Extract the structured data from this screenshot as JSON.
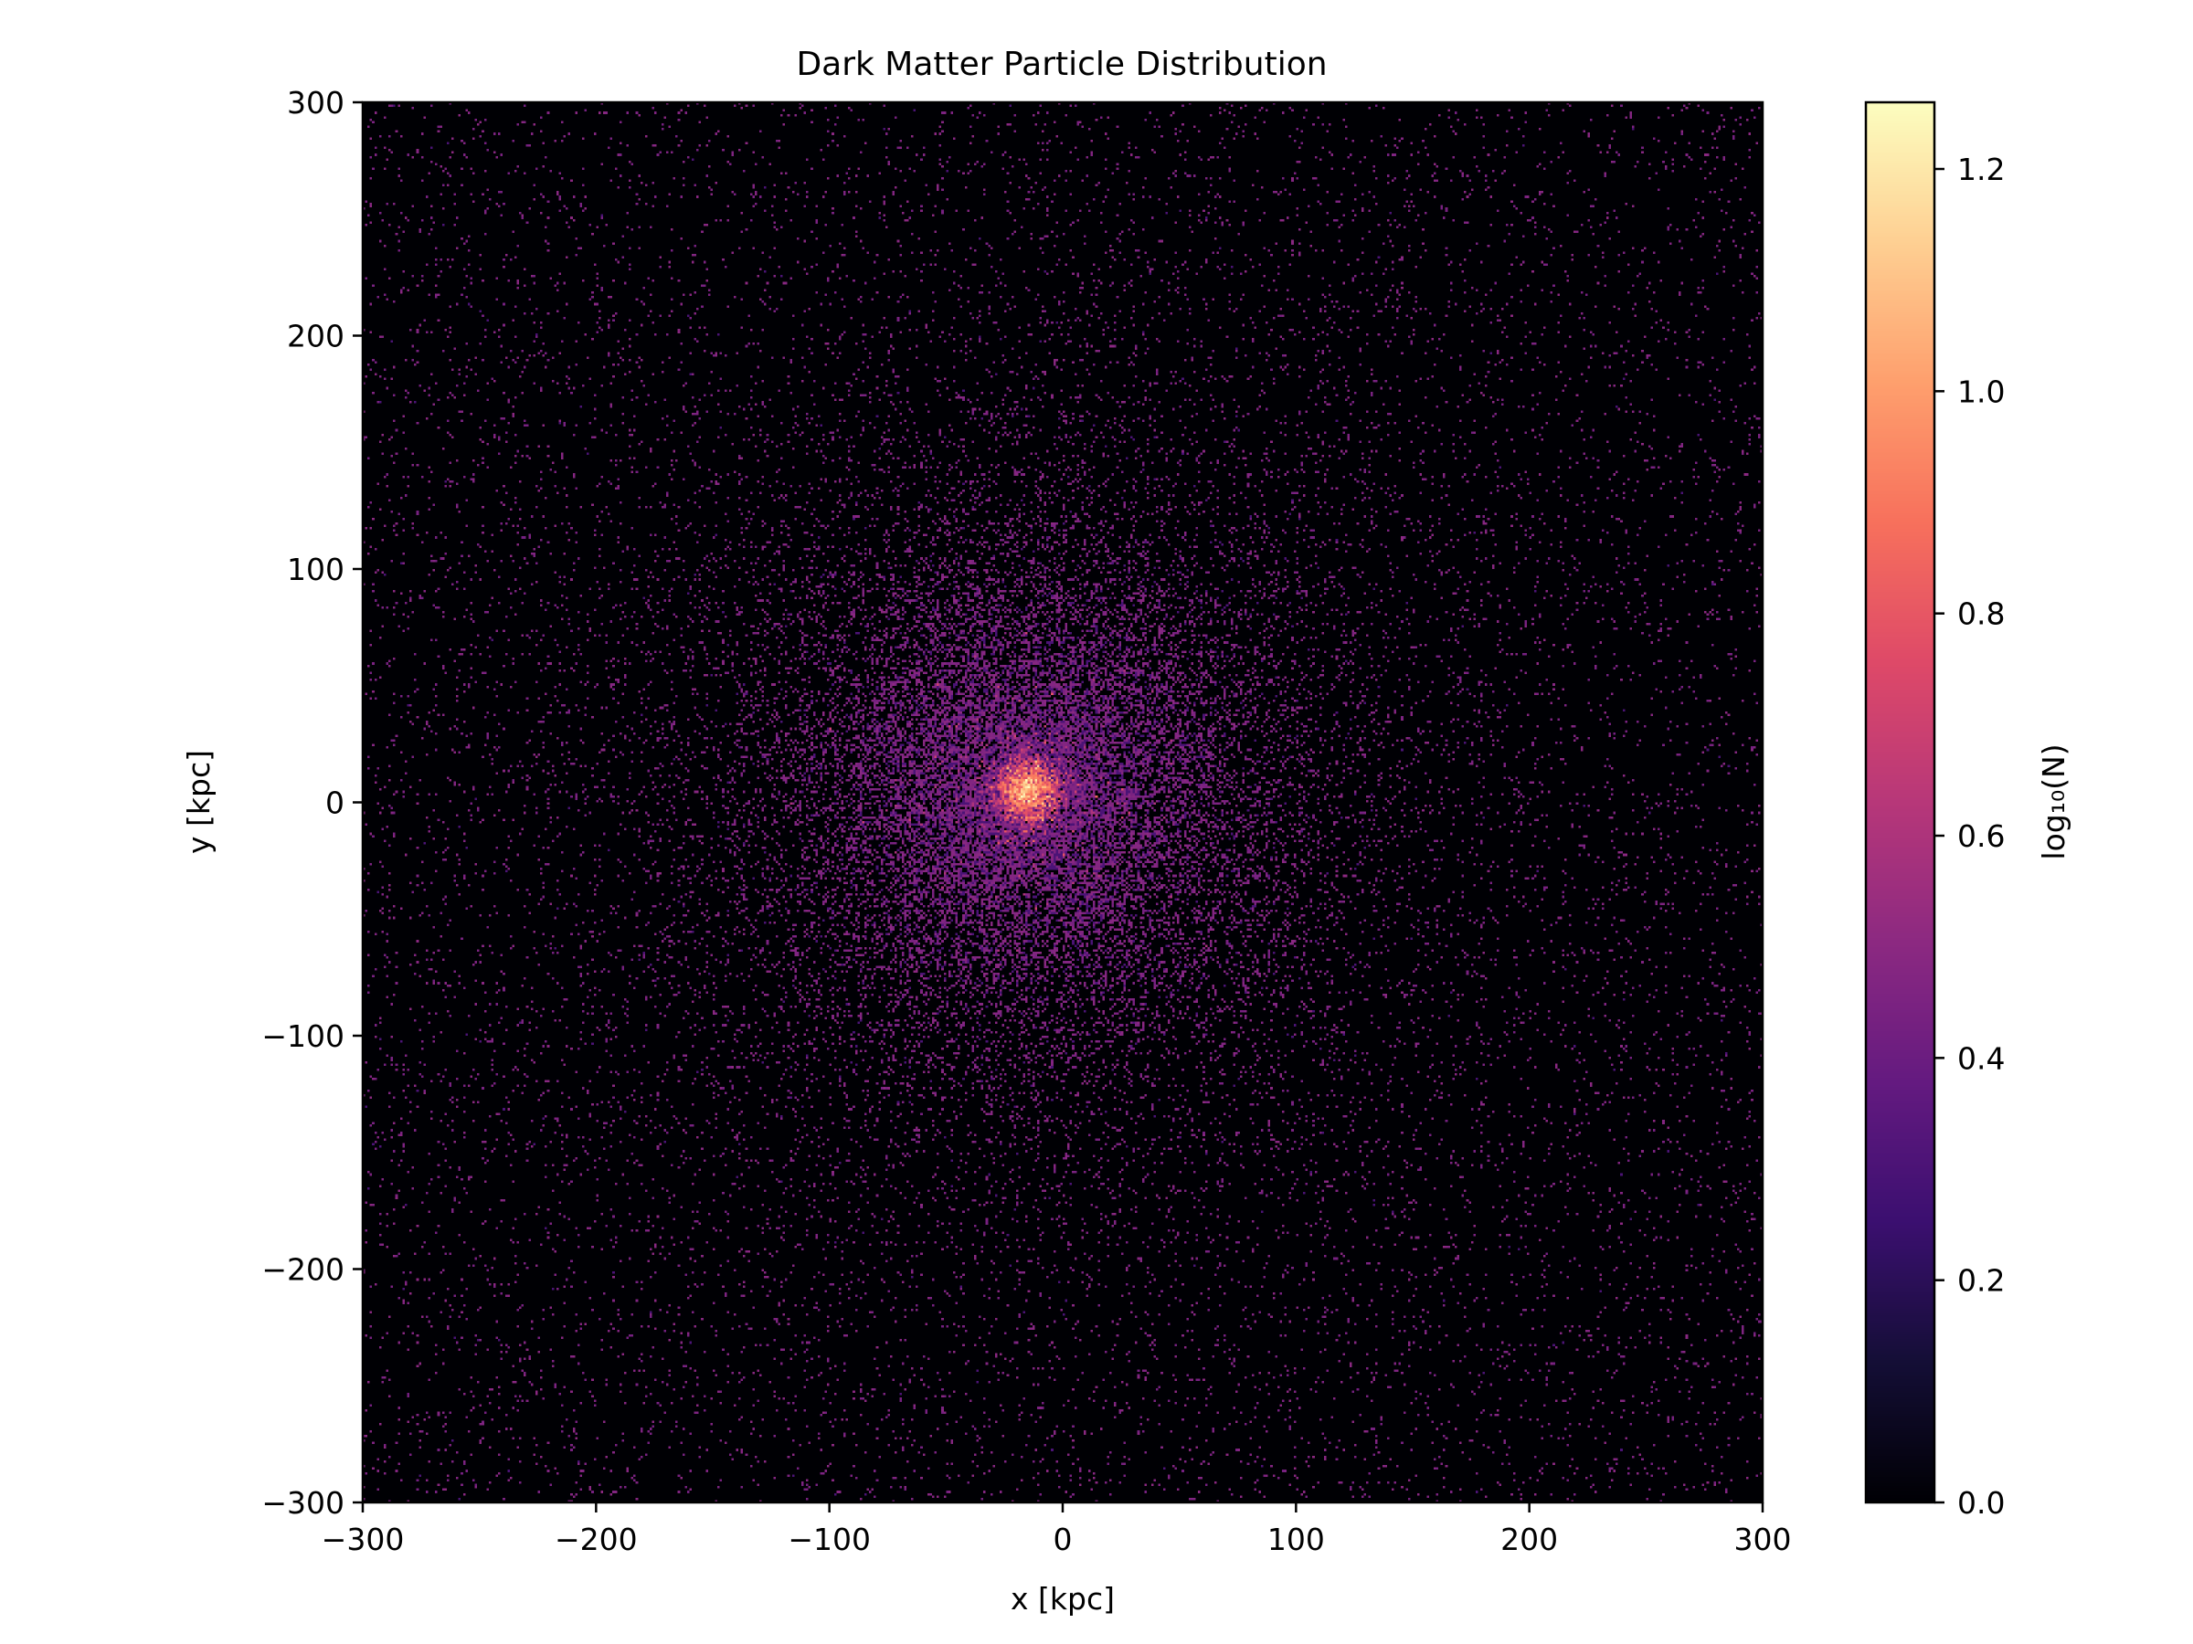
{
  "chart_data": {
    "type": "heatmap",
    "title": "Dark Matter Particle Distribution",
    "xlabel": "x [kpc]",
    "ylabel": "y [kpc]",
    "xlim": [
      -300,
      300
    ],
    "ylim": [
      -300,
      300
    ],
    "x_ticks": [
      -300,
      -200,
      -100,
      0,
      100,
      200,
      300
    ],
    "y_ticks": [
      -300,
      -200,
      -100,
      0,
      100,
      200,
      300
    ],
    "x_tick_labels": [
      "−300",
      "−200",
      "−100",
      "0",
      "100",
      "200",
      "300"
    ],
    "y_tick_labels": [
      "−300",
      "−200",
      "−100",
      "0",
      "100",
      "200",
      "300"
    ],
    "colormap": "magma",
    "colorbar": {
      "label": "log₁₀(N)",
      "range": [
        0.0,
        1.26
      ],
      "ticks": [
        0.0,
        0.2,
        0.4,
        0.6,
        0.8,
        1.0,
        1.2
      ],
      "tick_labels": [
        "0.0",
        "0.2",
        "0.4",
        "0.6",
        "0.8",
        "1.0",
        "1.2"
      ]
    },
    "density_peak_kpc": [
      -15,
      5
    ],
    "grid": false
  }
}
